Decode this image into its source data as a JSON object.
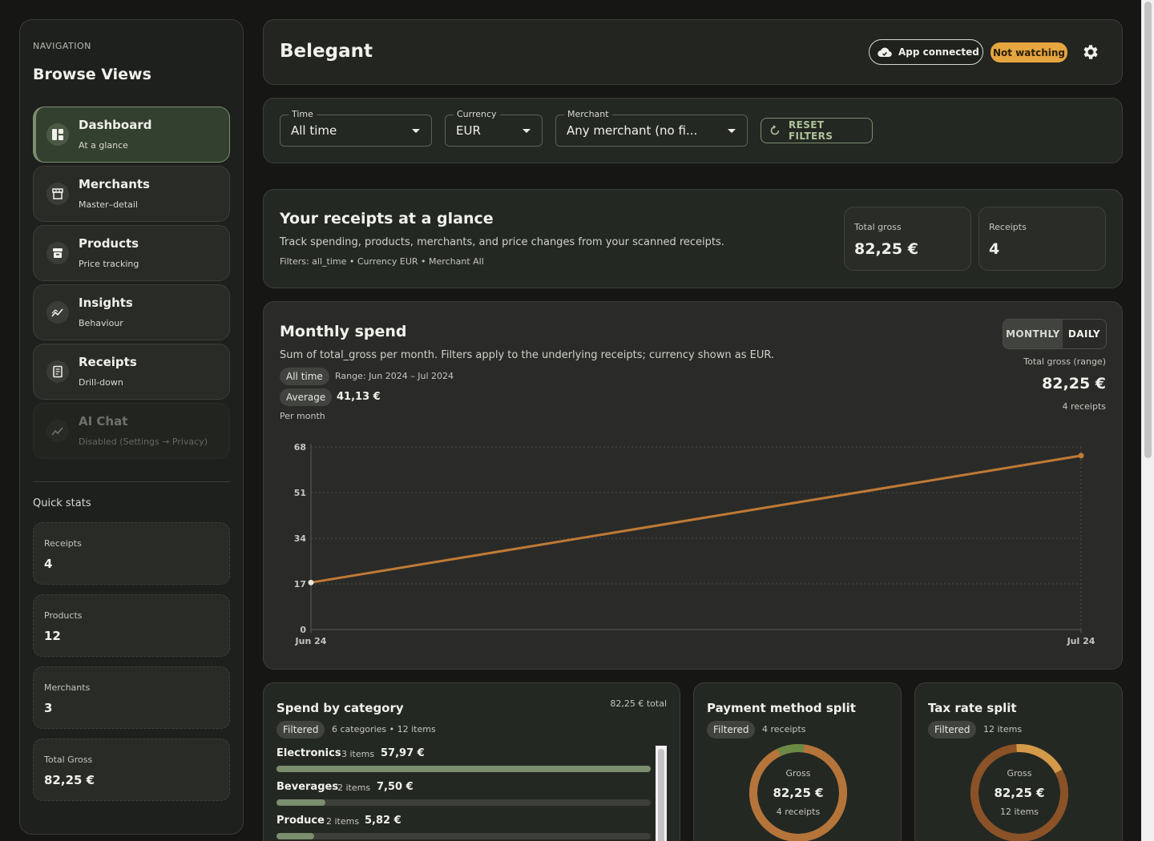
{
  "sidebar": {
    "caption": "NAVIGATION",
    "title": "Browse Views",
    "items": [
      {
        "label": "Dashboard",
        "sub": "At a glance",
        "icon": "dashboard-icon"
      },
      {
        "label": "Merchants",
        "sub": "Master–detail",
        "icon": "store-icon"
      },
      {
        "label": "Products",
        "sub": "Price tracking",
        "icon": "archive-icon"
      },
      {
        "label": "Insights",
        "sub": "Behaviour",
        "icon": "trend-icon"
      },
      {
        "label": "Receipts",
        "sub": "Drill-down",
        "icon": "receipt-icon"
      },
      {
        "label": "AI Chat",
        "sub": "Disabled (Settings → Privacy)",
        "icon": "trend-icon"
      }
    ],
    "quick_stats_title": "Quick stats",
    "quick_stats": [
      {
        "label": "Receipts",
        "value": "4"
      },
      {
        "label": "Products",
        "value": "12"
      },
      {
        "label": "Merchants",
        "value": "3"
      },
      {
        "label": "Total Gross",
        "value": "82,25 €"
      }
    ]
  },
  "header": {
    "title": "Belegant",
    "connected_label": "App connected",
    "watch_label": "Not watching",
    "accent": "#e5a640"
  },
  "filters": {
    "time": {
      "legend": "Time",
      "value": "All time"
    },
    "currency": {
      "legend": "Currency",
      "value": "EUR"
    },
    "merchant": {
      "legend": "Merchant",
      "value": "Any merchant (no fi..."
    },
    "reset_label": "RESET FILTERS"
  },
  "glance": {
    "title": "Your receipts at a glance",
    "description": "Track spending, products, merchants, and price changes from your scanned receipts.",
    "filters_line": "Filters: all_time • Currency EUR • Merchant All",
    "total_gross_label": "Total gross",
    "total_gross_value": "82,25 €",
    "receipts_label": "Receipts",
    "receipts_value": "4"
  },
  "monthly": {
    "title": "Monthly spend",
    "description": "Sum of total_gross per month. Filters apply to the underlying receipts; currency shown as EUR.",
    "time_pill": "All time",
    "range": "Range: Jun 2024 – Jul 2024",
    "avg_pill": "Average",
    "avg_value": "41,13 €",
    "per_month": "Per month",
    "toggle_monthly": "MONTHLY",
    "toggle_daily": "DAILY",
    "right_label": "Total gross (range)",
    "right_value": "82,25 €",
    "right_sub": "4 receipts"
  },
  "chart_data": {
    "type": "line",
    "x": [
      "Jun 24",
      "Jul 24"
    ],
    "series": [
      {
        "values": [
          17.5,
          64.75
        ],
        "color": "#c07a35"
      }
    ],
    "yticks": [
      0,
      17,
      34,
      51,
      68
    ],
    "ylim": [
      0,
      68
    ],
    "grid": true
  },
  "category": {
    "title": "Spend by category",
    "total": "82,25 € total",
    "pill": "Filtered",
    "meta": "6 categories • 12 items",
    "rows": [
      {
        "name": "Electronics",
        "items": "3 items",
        "amount": "57,97 €",
        "share": 1.0
      },
      {
        "name": "Beverages",
        "items": "2 items",
        "amount": "7,50 €",
        "share": 0.13
      },
      {
        "name": "Produce",
        "items": "2 items",
        "amount": "5,82 €",
        "share": 0.1
      }
    ]
  },
  "payment": {
    "title": "Payment method split",
    "pill": "Filtered",
    "meta": "4 receipts",
    "center_label": "Gross",
    "center_value": "82,25 €",
    "center_sub": "4 receipts",
    "segments": [
      0.09,
      0.91
    ],
    "colors": [
      "#6b8a44",
      "#b5743a"
    ]
  },
  "tax": {
    "title": "Tax rate split",
    "pill": "Filtered",
    "meta": "12 items",
    "center_label": "Gross",
    "center_value": "82,25 €",
    "center_sub": "12 items",
    "segments": [
      0.18,
      0.82
    ],
    "colors": [
      "#d39a4a",
      "#8a5226"
    ]
  }
}
